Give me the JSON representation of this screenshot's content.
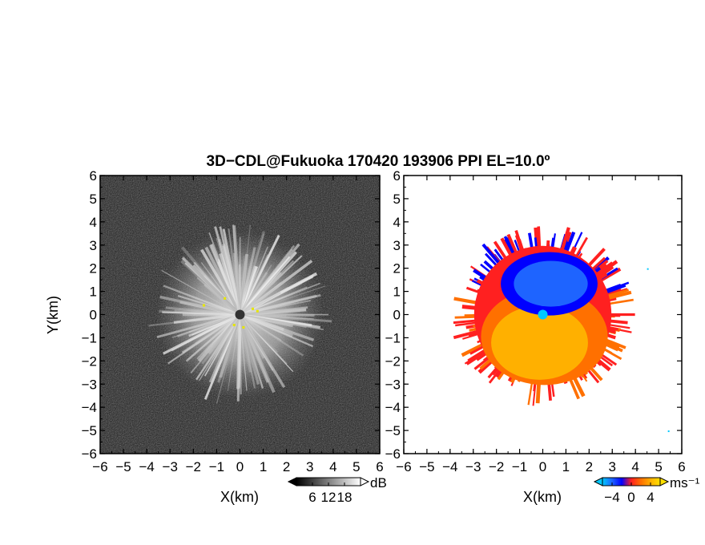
{
  "title": "3D−CDL@Fukuoka 170420 193906 PPI EL=10.0º",
  "chart_data": [
    {
      "type": "heatmap",
      "panel": "left",
      "quantity": "",
      "xlabel": "X(km)",
      "ylabel": "Y(km)",
      "xlim": [
        -6,
        6
      ],
      "ylim": [
        -6,
        6
      ],
      "x_ticks": [
        "−6",
        "−5",
        "−4",
        "−3",
        "−2",
        "−1",
        "0",
        "1",
        "2",
        "3",
        "4",
        "5",
        "6"
      ],
      "y_ticks": [
        "−6",
        "−5",
        "−4",
        "−3",
        "−2",
        "−1",
        "0",
        "1",
        "2",
        "3",
        "4",
        "5",
        "6"
      ],
      "echo_radius_km": 3.6,
      "colorbar": {
        "unit": "dB",
        "ticks": [
          "6",
          "12",
          "18"
        ],
        "min": 0,
        "max": 24,
        "colors": [
          "#000000",
          "#555555",
          "#aaaaaa",
          "#ffffff"
        ]
      }
    },
    {
      "type": "heatmap",
      "panel": "right",
      "quantity": "",
      "xlabel": "X(km)",
      "xlim": [
        -6,
        6
      ],
      "ylim": [
        -6,
        6
      ],
      "x_ticks": [
        "−6",
        "−5",
        "−4",
        "−3",
        "−2",
        "−1",
        "0",
        "1",
        "2",
        "3",
        "4",
        "5",
        "6"
      ],
      "y_ticks": [
        "−6",
        "−5",
        "−4",
        "−3",
        "−2",
        "−1",
        "0",
        "1",
        "2",
        "3",
        "4",
        "5",
        "6"
      ],
      "echo_radius_km": 3.8,
      "colorbar": {
        "unit": "ms⁻¹",
        "ticks": [
          "−4",
          "0",
          "4"
        ],
        "min": -6,
        "max": 6,
        "colors": [
          "#00c8ff",
          "#1e64ff",
          "#0000ff",
          "#ff2020",
          "#ff7000",
          "#ffb000",
          "#ffe000"
        ]
      }
    }
  ]
}
